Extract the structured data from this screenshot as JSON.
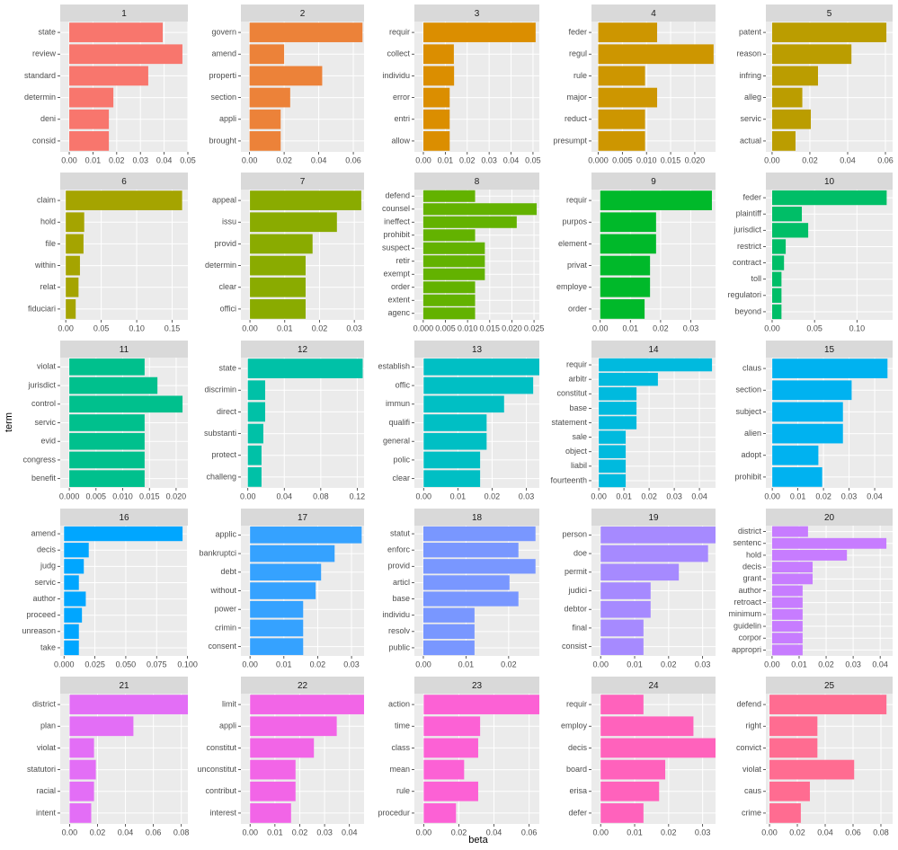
{
  "y_label": "term",
  "x_label": "beta",
  "chart_data": [
    {
      "type": "bar",
      "orientation": "horizontal",
      "title": "1",
      "color": "#F8766D",
      "categories": [
        "state",
        "review",
        "standard",
        "determin",
        "deni",
        "consid"
      ],
      "values": [
        0.0394,
        0.0477,
        0.0333,
        0.0186,
        0.0167,
        0.0167
      ],
      "xlim": [
        -0.0038,
        0.05
      ],
      "xticks": [
        {
          "value": 0,
          "label": "0.00"
        },
        0.01,
        0.02,
        0.03,
        0.04,
        0.05
      ]
    },
    {
      "type": "bar",
      "orientation": "horizontal",
      "title": "2",
      "color": "#EC8239",
      "categories": [
        "govern",
        "amend",
        "properti",
        "section",
        "appli",
        "brought"
      ],
      "values": [
        0.0653,
        0.02,
        0.042,
        0.0235,
        0.018,
        0.018
      ],
      "xlim": [
        -0.005,
        0.0662
      ],
      "xticks": [
        {
          "value": 0,
          "label": "0.00"
        },
        0.02,
        0.04,
        0.06
      ]
    },
    {
      "type": "bar",
      "orientation": "horizontal",
      "title": "3",
      "color": "#DB8E00",
      "categories": [
        "requir",
        "collect",
        "individu",
        "error",
        "entri",
        "allow"
      ],
      "values": [
        0.0512,
        0.0139,
        0.014,
        0.012,
        0.012,
        0.012
      ],
      "xlim": [
        -0.0041,
        0.0529
      ],
      "xticks": [
        {
          "value": 0,
          "label": "0.00"
        },
        0.01,
        0.02,
        0.03,
        0.04,
        0.05
      ]
    },
    {
      "type": "bar",
      "orientation": "horizontal",
      "title": "4",
      "color": "#CD9600",
      "categories": [
        "feder",
        "regul",
        "rule",
        "major",
        "reduct",
        "presumpt"
      ],
      "values": [
        0.0122,
        0.0239,
        0.0097,
        0.0122,
        0.0097,
        0.0097
      ],
      "xlim": [
        -0.0014,
        0.0243
      ],
      "xticks": [
        {
          "value": 0,
          "label": "0.000"
        },
        0.005,
        {
          "value": 0.01,
          "label": "0.010"
        },
        0.015,
        {
          "value": 0.02,
          "label": "0.020"
        }
      ]
    },
    {
      "type": "bar",
      "orientation": "horizontal",
      "title": "5",
      "color": "#BB9D00",
      "categories": [
        "patent",
        "reason",
        "infring",
        "alleg",
        "servic",
        "actual"
      ],
      "values": [
        0.0605,
        0.042,
        0.0243,
        0.016,
        0.0205,
        0.0124
      ],
      "xlim": [
        -0.0033,
        0.0638
      ],
      "xticks": [
        {
          "value": 0,
          "label": "0.00"
        },
        0.02,
        0.04,
        0.06
      ]
    },
    {
      "type": "bar",
      "orientation": "horizontal",
      "title": "6",
      "color": "#A5A400",
      "categories": [
        "claim",
        "hold",
        "file",
        "within",
        "relat",
        "fiduciari"
      ],
      "values": [
        0.164,
        0.026,
        0.025,
        0.02,
        0.018,
        0.014
      ],
      "xlim": [
        -0.0078,
        0.1721
      ],
      "xticks": [
        {
          "value": 0,
          "label": "0.00"
        },
        0.05,
        {
          "value": 0.1,
          "label": "0.10"
        },
        0.15
      ]
    },
    {
      "type": "bar",
      "orientation": "horizontal",
      "title": "7",
      "color": "#8AAB00",
      "categories": [
        "appeal",
        "issu",
        "provid",
        "determin",
        "clear",
        "offici"
      ],
      "values": [
        0.032,
        0.025,
        0.018,
        0.016,
        0.016,
        0.016
      ],
      "xlim": [
        -0.0026,
        0.0328
      ],
      "xticks": [
        {
          "value": 0,
          "label": "0.00"
        },
        0.01,
        0.02,
        0.03
      ]
    },
    {
      "type": "bar",
      "orientation": "horizontal",
      "title": "8",
      "color": "#63B200",
      "categories": [
        "defend",
        "counsel",
        "ineffect",
        "prohibit",
        "suspect",
        "retir",
        "exempt",
        "order",
        "extent",
        "agenc"
      ],
      "values": [
        0.0117,
        0.0256,
        0.0211,
        0.0117,
        0.0139,
        0.0139,
        0.0139,
        0.0117,
        0.0117,
        0.0117
      ],
      "xlim": [
        -0.002,
        0.0262
      ],
      "xticks": [
        {
          "value": 0,
          "label": "0.000"
        },
        0.005,
        {
          "value": 0.01,
          "label": "0.010"
        },
        0.015,
        {
          "value": 0.02,
          "label": "0.020"
        },
        0.025
      ]
    },
    {
      "type": "bar",
      "orientation": "horizontal",
      "title": "9",
      "color": "#00B92A",
      "categories": [
        "requir",
        "purpos",
        "element",
        "privat",
        "employe",
        "order"
      ],
      "values": [
        0.037,
        0.0185,
        0.0185,
        0.0165,
        0.0165,
        0.0147
      ],
      "xlim": [
        -0.0029,
        0.0382
      ],
      "xticks": [
        {
          "value": 0,
          "label": "0.00"
        },
        0.01,
        0.02,
        0.03
      ]
    },
    {
      "type": "bar",
      "orientation": "horizontal",
      "title": "10",
      "color": "#00BE67",
      "categories": [
        "feder",
        "plaintiff",
        "jurisdict",
        "restrict",
        "contract",
        "toll",
        "regulatori",
        "beyond"
      ],
      "values": [
        0.135,
        0.035,
        0.0425,
        0.016,
        0.014,
        0.011,
        0.011,
        0.011
      ],
      "xlim": [
        -0.0074,
        0.142
      ],
      "xticks": [
        {
          "value": 0,
          "label": "0.00"
        },
        0.05,
        {
          "value": 0.1,
          "label": "0.10"
        }
      ]
    },
    {
      "type": "bar",
      "orientation": "horizontal",
      "title": "11",
      "color": "#00C08D",
      "categories": [
        "violat",
        "jurisdict",
        "control",
        "servic",
        "evid",
        "congress",
        "benefit"
      ],
      "values": [
        0.0141,
        0.0165,
        0.0212,
        0.0141,
        0.0141,
        0.0141,
        0.0141
      ],
      "xlim": [
        -0.0017,
        0.0222
      ],
      "xticks": [
        {
          "value": 0,
          "label": "0.000"
        },
        0.005,
        {
          "value": 0.01,
          "label": "0.010"
        },
        0.015,
        {
          "value": 0.02,
          "label": "0.020"
        }
      ]
    },
    {
      "type": "bar",
      "orientation": "horizontal",
      "title": "12",
      "color": "#00C1A7",
      "categories": [
        "state",
        "discrimin",
        "direct",
        "substanti",
        "protect",
        "challeng"
      ],
      "values": [
        0.126,
        0.019,
        0.019,
        0.017,
        0.015,
        0.015
      ],
      "xlim": [
        -0.0076,
        0.1275
      ],
      "xticks": [
        {
          "value": 0,
          "label": "0.00"
        },
        0.04,
        0.08,
        0.12
      ]
    },
    {
      "type": "bar",
      "orientation": "horizontal",
      "title": "13",
      "color": "#00BFC4",
      "categories": [
        "establish",
        "offic",
        "immun",
        "qualifi",
        "general",
        "polic",
        "clear"
      ],
      "values": [
        0.0338,
        0.032,
        0.0235,
        0.0184,
        0.0184,
        0.0165,
        0.0165
      ],
      "xlim": [
        -0.0027,
        0.0338
      ],
      "xticks": [
        {
          "value": 0,
          "label": "0.00"
        },
        0.01,
        0.02,
        0.03
      ]
    },
    {
      "type": "bar",
      "orientation": "horizontal",
      "title": "14",
      "color": "#00BADE",
      "categories": [
        "requir",
        "arbitr",
        "constitut",
        "base",
        "statement",
        "sale",
        "object",
        "liabil",
        "fourteenth"
      ],
      "values": [
        0.045,
        0.0235,
        0.015,
        0.015,
        0.015,
        0.0107,
        0.0107,
        0.0107,
        0.0107
      ],
      "xlim": [
        -0.0029,
        0.0464
      ],
      "xticks": [
        {
          "value": 0,
          "label": "0.00"
        },
        0.01,
        0.02,
        0.03,
        0.04
      ]
    },
    {
      "type": "bar",
      "orientation": "horizontal",
      "title": "15",
      "color": "#00B2F0",
      "categories": [
        "claus",
        "section",
        "subject",
        "alien",
        "adopt",
        "prohibit"
      ],
      "values": [
        0.045,
        0.031,
        0.0276,
        0.0276,
        0.018,
        0.0195
      ],
      "xlim": [
        -0.0025,
        0.047
      ],
      "xticks": [
        {
          "value": 0,
          "label": "0.00"
        },
        0.01,
        0.02,
        0.03,
        0.04
      ]
    },
    {
      "type": "bar",
      "orientation": "horizontal",
      "title": "16",
      "color": "#00A6FF",
      "categories": [
        "amend",
        "decis",
        "judg",
        "servic",
        "author",
        "proceed",
        "unreason",
        "take"
      ],
      "values": [
        0.096,
        0.02,
        0.016,
        0.012,
        0.0176,
        0.0145,
        0.012,
        0.012
      ],
      "xlim": [
        -0.0031,
        0.1003
      ],
      "xticks": [
        {
          "value": 0,
          "label": "0.000"
        },
        0.025,
        {
          "value": 0.05,
          "label": "0.050"
        },
        0.075,
        {
          "value": 0.1,
          "label": "0.100"
        }
      ]
    },
    {
      "type": "bar",
      "orientation": "horizontal",
      "title": "17",
      "color": "#35A2FF",
      "categories": [
        "applic",
        "bankruptci",
        "debt",
        "without",
        "power",
        "crimin",
        "consent"
      ],
      "values": [
        0.033,
        0.025,
        0.021,
        0.0194,
        0.0157,
        0.0157,
        0.0157
      ],
      "xlim": [
        -0.0027,
        0.0337
      ],
      "xticks": [
        {
          "value": 0,
          "label": "0.00"
        },
        0.01,
        0.02,
        0.03
      ]
    },
    {
      "type": "bar",
      "orientation": "horizontal",
      "title": "18",
      "color": "#7997FF",
      "categories": [
        "statut",
        "enforc",
        "provid",
        "articl",
        "base",
        "individu",
        "resolv",
        "public"
      ],
      "values": [
        0.0263,
        0.0223,
        0.0263,
        0.0202,
        0.0223,
        0.012,
        0.012,
        0.012
      ],
      "xlim": [
        -0.0021,
        0.0272
      ],
      "xticks": [
        {
          "value": 0,
          "label": "0.00"
        },
        0.01,
        0.02
      ]
    },
    {
      "type": "bar",
      "orientation": "horizontal",
      "title": "19",
      "color": "#A68AFF",
      "categories": [
        "person",
        "doe",
        "permit",
        "judici",
        "debtor",
        "final",
        "consist"
      ],
      "values": [
        0.0338,
        0.0316,
        0.023,
        0.0147,
        0.0147,
        0.0126,
        0.0126
      ],
      "xlim": [
        -0.0027,
        0.0338
      ],
      "xticks": [
        {
          "value": 0,
          "label": "0.00"
        },
        0.01,
        0.02,
        0.03
      ]
    },
    {
      "type": "bar",
      "orientation": "horizontal",
      "title": "20",
      "color": "#C77CFF",
      "categories": [
        "district",
        "sentenc",
        "hold",
        "decis",
        "grant",
        "author",
        "retroact",
        "minimum",
        "guidelin",
        "corpor",
        "appropri"
      ],
      "values": [
        0.0133,
        0.0423,
        0.0277,
        0.015,
        0.015,
        0.0113,
        0.0113,
        0.0113,
        0.0113,
        0.0113,
        0.0113
      ],
      "xlim": [
        -0.0023,
        0.0446
      ],
      "xticks": [
        {
          "value": 0,
          "label": "0.00"
        },
        0.01,
        0.02,
        0.03,
        0.04
      ]
    },
    {
      "type": "bar",
      "orientation": "horizontal",
      "title": "21",
      "color": "#E36EF6",
      "categories": [
        "district",
        "plan",
        "violat",
        "statutori",
        "racial",
        "intent"
      ],
      "values": [
        0.0847,
        0.0457,
        0.0175,
        0.0188,
        0.0175,
        0.0155
      ],
      "xlim": [
        -0.0067,
        0.0847
      ],
      "xticks": [
        {
          "value": 0,
          "label": "0.00"
        },
        0.02,
        0.04,
        0.06,
        0.08
      ]
    },
    {
      "type": "bar",
      "orientation": "horizontal",
      "title": "22",
      "color": "#F265E7",
      "categories": [
        "limit",
        "appli",
        "constitut",
        "unconstitut",
        "contribut",
        "interest"
      ],
      "values": [
        0.0459,
        0.0349,
        0.0257,
        0.0183,
        0.0183,
        0.0165
      ],
      "xlim": [
        -0.0037,
        0.0459
      ],
      "xticks": [
        {
          "value": 0,
          "label": "0.00"
        },
        0.01,
        0.02,
        0.03,
        0.04
      ]
    },
    {
      "type": "bar",
      "orientation": "horizontal",
      "title": "23",
      "color": "#FC61D5",
      "categories": [
        "action",
        "time",
        "class",
        "mean",
        "rule",
        "procedur"
      ],
      "values": [
        0.0658,
        0.0321,
        0.031,
        0.023,
        0.031,
        0.0184
      ],
      "xlim": [
        -0.0053,
        0.0658
      ],
      "xticks": [
        {
          "value": 0,
          "label": "0.00"
        },
        0.02,
        0.04,
        0.06
      ]
    },
    {
      "type": "bar",
      "orientation": "horizontal",
      "title": "24",
      "color": "#FF62BC",
      "categories": [
        "requir",
        "employ",
        "decis",
        "board",
        "erisa",
        "defer"
      ],
      "values": [
        0.0126,
        0.0273,
        0.0338,
        0.019,
        0.0172,
        0.0126
      ],
      "xlim": [
        -0.0027,
        0.0338
      ],
      "xticks": [
        {
          "value": 0,
          "label": "0.00"
        },
        0.01,
        0.02,
        0.03
      ]
    },
    {
      "type": "bar",
      "orientation": "horizontal",
      "title": "25",
      "color": "#FF6C91",
      "categories": [
        "defend",
        "right",
        "convict",
        "violat",
        "caus",
        "crime"
      ],
      "values": [
        0.084,
        0.0344,
        0.0344,
        0.0608,
        0.029,
        0.0225
      ],
      "xlim": [
        -0.0026,
        0.0884
      ],
      "xticks": [
        {
          "value": 0,
          "label": "0.00"
        },
        0.02,
        0.04,
        0.06,
        0.08
      ]
    }
  ]
}
